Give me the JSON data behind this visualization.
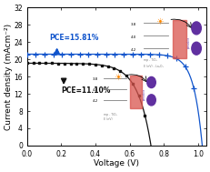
{
  "xlabel": "Voltage (V)",
  "ylabel": "Current density (mAcm⁻²)",
  "xlim": [
    0.0,
    1.05
  ],
  "ylim": [
    0.0,
    32
  ],
  "yticks": [
    0,
    4,
    8,
    12,
    16,
    20,
    24,
    28,
    32
  ],
  "xticks": [
    0.0,
    0.2,
    0.4,
    0.6,
    0.8,
    1.0
  ],
  "blue_jsc": 21.2,
  "blue_voc": 1.025,
  "blue_ff": 20,
  "blue_color": "#1155cc",
  "black_jsc": 19.1,
  "black_voc": 0.725,
  "black_ff": 13,
  "black_color": "#111111",
  "pce_blue_text": "PCE=15.81%",
  "pce_black_text": "PCE=11.10%",
  "background_color": "#ffffff",
  "tick_fontsize": 5.5,
  "label_fontsize": 6.5
}
